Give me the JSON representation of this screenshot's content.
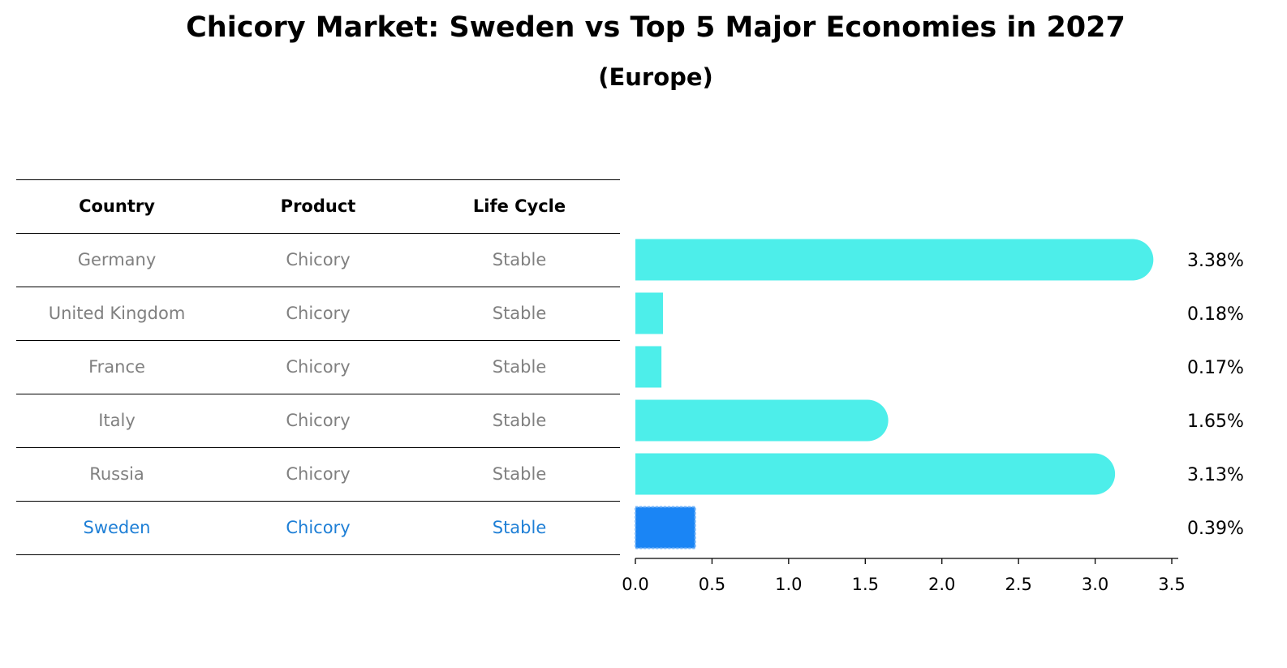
{
  "title": "Chicory Market: Sweden vs Top 5 Major Economies in 2027",
  "subtitle": "(Europe)",
  "table": {
    "headers": [
      "Country",
      "Product",
      "Life Cycle"
    ],
    "rows": [
      [
        "Germany",
        "Chicory",
        "Stable"
      ],
      [
        "United Kingdom",
        "Chicory",
        "Stable"
      ],
      [
        "France",
        "Chicory",
        "Stable"
      ],
      [
        "Italy",
        "Chicory",
        "Stable"
      ],
      [
        "Russia",
        "Chicory",
        "Stable"
      ],
      [
        "Sweden",
        "Chicory",
        "Stable"
      ]
    ],
    "highlight_row": "Sweden"
  },
  "chart_data": {
    "type": "bar",
    "orientation": "horizontal",
    "categories": [
      "Germany",
      "United Kingdom",
      "France",
      "Italy",
      "Russia",
      "Sweden"
    ],
    "values": [
      3.38,
      0.18,
      0.17,
      1.65,
      3.13,
      0.39
    ],
    "value_labels": [
      "3.38%",
      "0.18%",
      "0.17%",
      "1.65%",
      "3.13%",
      "0.39%"
    ],
    "xlim": [
      0,
      3.5
    ],
    "xticks": [
      "0.0",
      "0.5",
      "1.0",
      "1.5",
      "2.0",
      "2.5",
      "3.0",
      "3.5"
    ],
    "grid": false,
    "colors": {
      "bar": "#4deeea",
      "highlight": "#1a85f5",
      "highlight_border": "#74b4f7"
    }
  }
}
